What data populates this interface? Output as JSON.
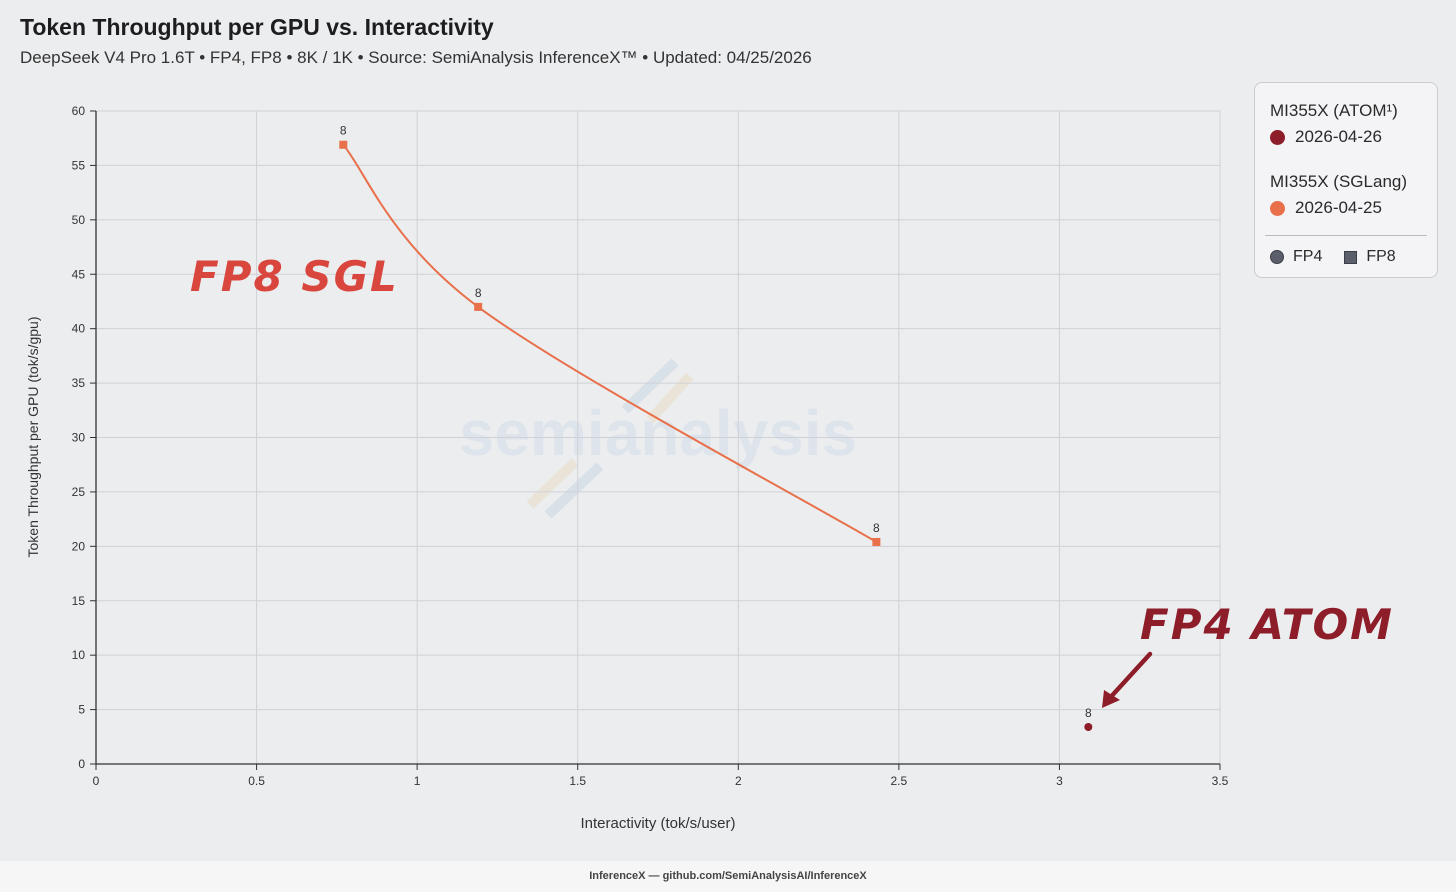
{
  "header": {
    "title": "Token Throughput per GPU vs. Interactivity",
    "subtitle": "DeepSeek V4 Pro 1.6T • FP4, FP8 • 8K / 1K • Source: SemiAnalysis InferenceX™ • Updated: 04/25/2026"
  },
  "watermark": "semianalysis",
  "legend": {
    "series": [
      {
        "name": "MI355X (ATOM¹)",
        "date": "2026-04-26",
        "color": "#8e1d2a"
      },
      {
        "name": "MI355X (SGLang)",
        "date": "2026-04-25",
        "color": "#e8704a"
      }
    ],
    "shapes": [
      {
        "label": "FP4",
        "icon": "circle-icon"
      },
      {
        "label": "FP8",
        "icon": "square-icon"
      }
    ]
  },
  "annotations": {
    "sgl": "FP8 SGL",
    "atom": "FP4 ATOM"
  },
  "footer": "InferenceX — github.com/SemiAnalysisAI/InferenceX",
  "chart_data": {
    "type": "scatter",
    "xlabel": "Interactivity (tok/s/user)",
    "ylabel": "Token Throughput per GPU (tok/s/gpu)",
    "xlim": [
      0,
      3.5
    ],
    "ylim": [
      0,
      60
    ],
    "xticks": [
      0,
      0.5,
      1,
      1.5,
      2,
      2.5,
      3,
      3.5
    ],
    "yticks": [
      0,
      5,
      10,
      15,
      20,
      25,
      30,
      35,
      40,
      45,
      50,
      55,
      60
    ],
    "grid": true,
    "legend_position": "top-right",
    "series": [
      {
        "name": "MI355X (SGLang)",
        "precision": "FP8",
        "marker": "square",
        "line": true,
        "color": "#e8704a",
        "points": [
          {
            "x": 0.77,
            "y": 56.9,
            "label": "8"
          },
          {
            "x": 1.19,
            "y": 42.0,
            "label": "8"
          },
          {
            "x": 2.43,
            "y": 20.4,
            "label": "8"
          }
        ]
      },
      {
        "name": "MI355X (ATOM¹)",
        "precision": "FP4",
        "marker": "circle",
        "line": false,
        "color": "#8e1d2a",
        "points": [
          {
            "x": 3.09,
            "y": 3.4,
            "label": "8"
          }
        ]
      }
    ]
  }
}
